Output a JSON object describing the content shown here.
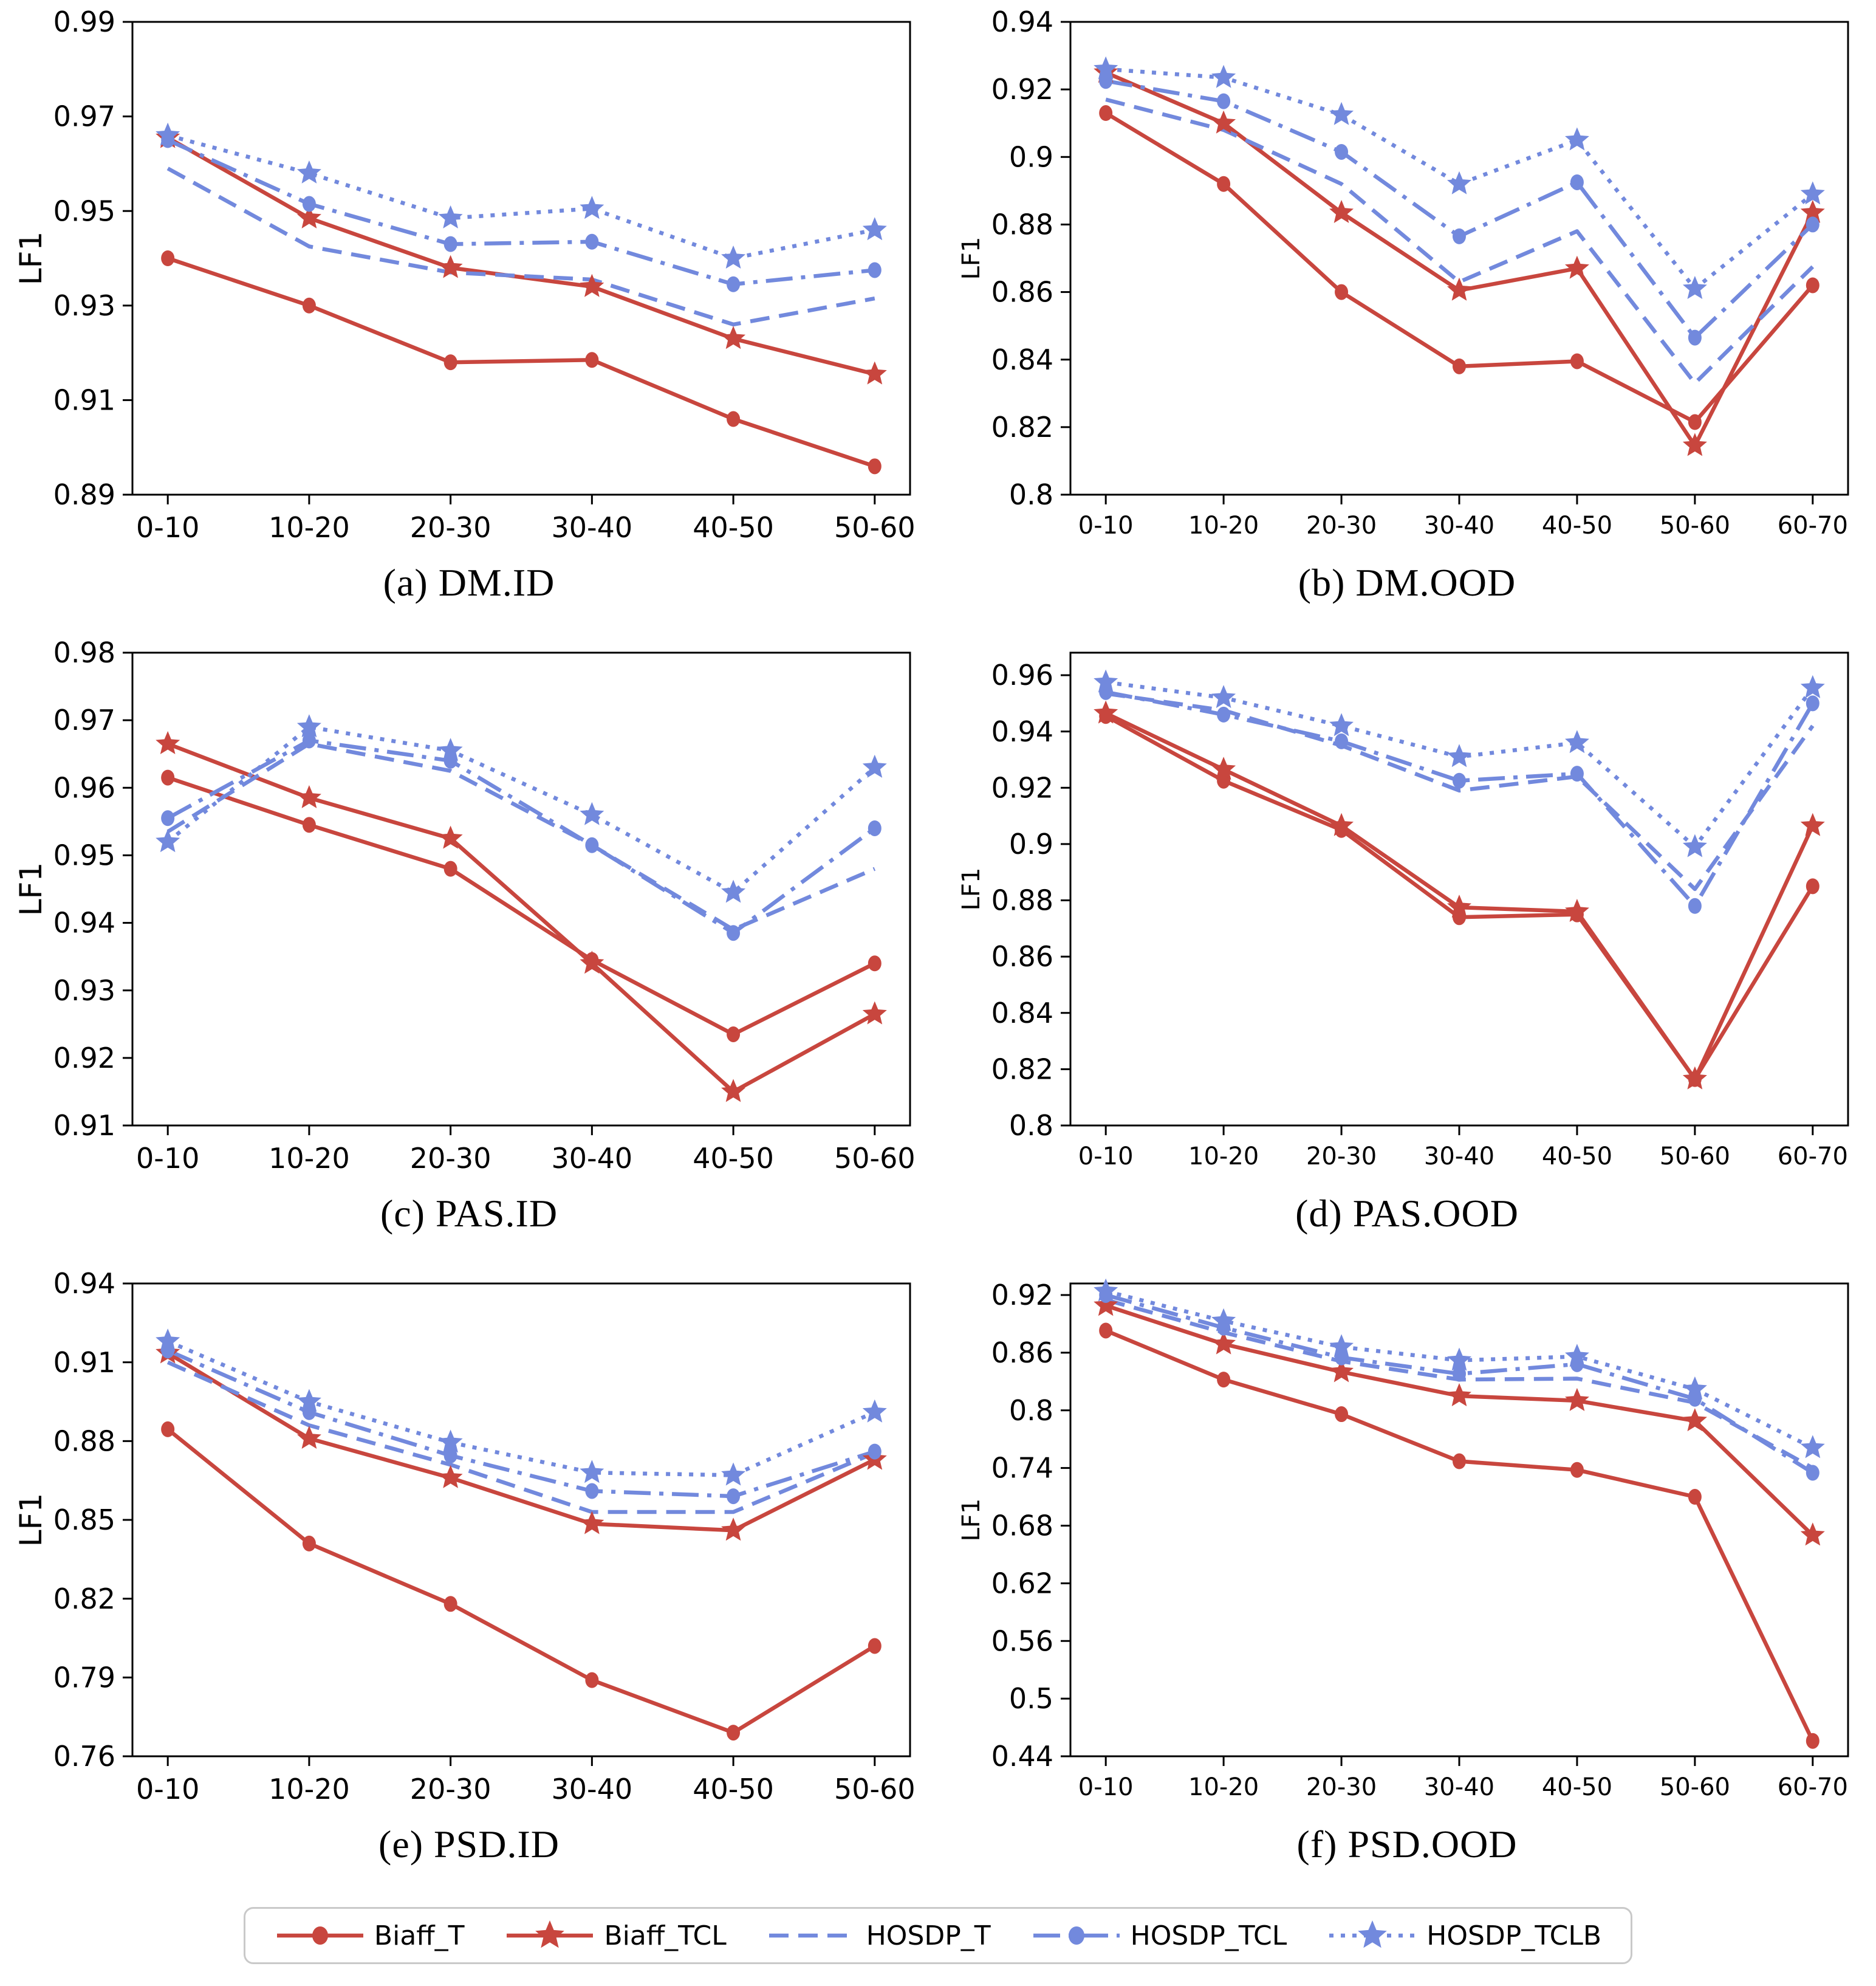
{
  "figure": {
    "background": "#ffffff",
    "ylabel": "LF1"
  },
  "colors": {
    "red": "#c8463e",
    "blue": "#7289dd",
    "axis": "#000000",
    "legend_border": "#c9c9c9"
  },
  "series_styles": {
    "Biaff_T": {
      "color": "#c8463e",
      "marker": "circle",
      "line": "solid"
    },
    "Biaff_TCL": {
      "color": "#c8463e",
      "marker": "star",
      "line": "solid"
    },
    "HOSDP_T": {
      "color": "#7289dd",
      "marker": "none",
      "line": "dashed"
    },
    "HOSDP_TCL": {
      "color": "#7289dd",
      "marker": "circle",
      "line": "dashdot"
    },
    "HOSDP_TCLB": {
      "color": "#7289dd",
      "marker": "star",
      "line": "dotted"
    }
  },
  "legend": {
    "position": "bottom",
    "items": [
      {
        "label": "Biaff_T",
        "style": "Biaff_T"
      },
      {
        "label": "Biaff_TCL",
        "style": "Biaff_TCL"
      },
      {
        "label": "HOSDP_T",
        "style": "HOSDP_T"
      },
      {
        "label": "HOSDP_TCL",
        "style": "HOSDP_TCL"
      },
      {
        "label": "HOSDP_TCLB",
        "style": "HOSDP_TCLB"
      }
    ]
  },
  "chart_data": [
    {
      "type": "line",
      "title": "(a) DM.ID",
      "ylabel": "LF1",
      "grid": false,
      "categories": [
        "0-10",
        "10-20",
        "20-30",
        "30-40",
        "40-50",
        "50-60"
      ],
      "ylim": [
        0.89,
        0.99
      ],
      "yticks": [
        0.89,
        0.91,
        0.93,
        0.95,
        0.97,
        0.99
      ],
      "ytick_labels": [
        "0.89",
        "0.91",
        "0.93",
        "0.95",
        "0.97",
        "0.99"
      ],
      "series": [
        {
          "name": "Biaff_T",
          "values": [
            0.94,
            0.93,
            0.918,
            0.9185,
            0.906,
            0.896
          ]
        },
        {
          "name": "Biaff_TCL",
          "values": [
            0.9655,
            0.9485,
            0.938,
            0.934,
            0.923,
            0.9155
          ]
        },
        {
          "name": "HOSDP_T",
          "values": [
            0.959,
            0.9425,
            0.937,
            0.9355,
            0.926,
            0.9315
          ]
        },
        {
          "name": "HOSDP_TCL",
          "values": [
            0.965,
            0.9515,
            0.943,
            0.9435,
            0.9345,
            0.9375
          ]
        },
        {
          "name": "HOSDP_TCLB",
          "values": [
            0.966,
            0.958,
            0.9485,
            0.9505,
            0.94,
            0.946
          ]
        }
      ]
    },
    {
      "type": "line",
      "title": "(b) DM.OOD",
      "ylabel": "LF1",
      "grid": false,
      "categories": [
        "0-10",
        "10-20",
        "20-30",
        "30-40",
        "40-50",
        "50-60",
        "60-70"
      ],
      "ylim": [
        0.8,
        0.94
      ],
      "yticks": [
        0.8,
        0.82,
        0.84,
        0.86,
        0.88,
        0.9,
        0.92,
        0.94
      ],
      "ytick_labels": [
        "0.8",
        "0.82",
        "0.84",
        "0.86",
        "0.88",
        "0.9",
        "0.92",
        "0.94"
      ],
      "series": [
        {
          "name": "Biaff_T",
          "values": [
            0.913,
            0.892,
            0.86,
            0.838,
            0.8395,
            0.8215,
            0.862
          ]
        },
        {
          "name": "Biaff_TCL",
          "values": [
            0.925,
            0.91,
            0.8835,
            0.8605,
            0.867,
            0.8145,
            0.8835
          ]
        },
        {
          "name": "HOSDP_T",
          "values": [
            0.917,
            0.908,
            0.892,
            0.863,
            0.878,
            0.833,
            0.8675
          ]
        },
        {
          "name": "HOSDP_TCL",
          "values": [
            0.9225,
            0.9165,
            0.9015,
            0.8765,
            0.8925,
            0.8465,
            0.88
          ]
        },
        {
          "name": "HOSDP_TCLB",
          "values": [
            0.926,
            0.9235,
            0.9125,
            0.892,
            0.905,
            0.861,
            0.889
          ]
        }
      ]
    },
    {
      "type": "line",
      "title": "(c) PAS.ID",
      "ylabel": "LF1",
      "grid": false,
      "categories": [
        "0-10",
        "10-20",
        "20-30",
        "30-40",
        "40-50",
        "50-60"
      ],
      "ylim": [
        0.91,
        0.98
      ],
      "yticks": [
        0.91,
        0.92,
        0.93,
        0.94,
        0.95,
        0.96,
        0.97,
        0.98
      ],
      "ytick_labels": [
        "0.91",
        "0.92",
        "0.93",
        "0.94",
        "0.95",
        "0.96",
        "0.97",
        "0.98"
      ],
      "series": [
        {
          "name": "Biaff_T",
          "values": [
            0.9615,
            0.9545,
            0.948,
            0.9345,
            0.9235,
            0.934
          ]
        },
        {
          "name": "Biaff_TCL",
          "values": [
            0.9665,
            0.9585,
            0.9525,
            0.934,
            0.915,
            0.9265
          ]
        },
        {
          "name": "HOSDP_T",
          "values": [
            0.9535,
            0.9665,
            0.9625,
            0.9515,
            0.939,
            0.948
          ]
        },
        {
          "name": "HOSDP_TCL",
          "values": [
            0.9555,
            0.967,
            0.964,
            0.9515,
            0.9385,
            0.954
          ]
        },
        {
          "name": "HOSDP_TCLB",
          "values": [
            0.952,
            0.969,
            0.9655,
            0.956,
            0.9445,
            0.963
          ]
        }
      ]
    },
    {
      "type": "line",
      "title": "(d) PAS.OOD",
      "ylabel": "LF1",
      "grid": false,
      "categories": [
        "0-10",
        "10-20",
        "20-30",
        "30-40",
        "40-50",
        "50-60",
        "60-70"
      ],
      "ylim": [
        0.8,
        0.968
      ],
      "yticks": [
        0.8,
        0.82,
        0.84,
        0.86,
        0.88,
        0.9,
        0.92,
        0.94,
        0.96
      ],
      "ytick_labels": [
        "0.8",
        "0.82",
        "0.84",
        "0.86",
        "0.88",
        "0.9",
        "0.92",
        "0.94",
        "0.96"
      ],
      "series": [
        {
          "name": "Biaff_T",
          "values": [
            0.9455,
            0.9225,
            0.905,
            0.874,
            0.875,
            0.8165,
            0.885
          ]
        },
        {
          "name": "Biaff_TCL",
          "values": [
            0.9465,
            0.9265,
            0.9065,
            0.8775,
            0.876,
            0.8165,
            0.9065
          ]
        },
        {
          "name": "HOSDP_T",
          "values": [
            0.9535,
            0.9475,
            0.935,
            0.919,
            0.924,
            0.884,
            0.942
          ]
        },
        {
          "name": "HOSDP_TCL",
          "values": [
            0.954,
            0.946,
            0.9365,
            0.9225,
            0.925,
            0.878,
            0.95
          ]
        },
        {
          "name": "HOSDP_TCLB",
          "values": [
            0.9575,
            0.952,
            0.942,
            0.931,
            0.936,
            0.899,
            0.9555
          ]
        }
      ]
    },
    {
      "type": "line",
      "title": "(e) PSD.ID",
      "ylabel": "LF1",
      "grid": false,
      "categories": [
        "0-10",
        "10-20",
        "20-30",
        "30-40",
        "40-50",
        "50-60"
      ],
      "ylim": [
        0.76,
        0.94
      ],
      "yticks": [
        0.76,
        0.79,
        0.82,
        0.85,
        0.88,
        0.91,
        0.94
      ],
      "ytick_labels": [
        "0.76",
        "0.79",
        "0.82",
        "0.85",
        "0.88",
        "0.91",
        "0.94"
      ],
      "series": [
        {
          "name": "Biaff_T",
          "values": [
            0.8845,
            0.841,
            0.818,
            0.789,
            0.769,
            0.802
          ]
        },
        {
          "name": "Biaff_TCL",
          "values": [
            0.9135,
            0.881,
            0.866,
            0.8485,
            0.846,
            0.873
          ]
        },
        {
          "name": "HOSDP_T",
          "values": [
            0.91,
            0.886,
            0.871,
            0.853,
            0.853,
            0.8755
          ]
        },
        {
          "name": "HOSDP_TCL",
          "values": [
            0.9145,
            0.891,
            0.8745,
            0.861,
            0.859,
            0.876
          ]
        },
        {
          "name": "HOSDP_TCLB",
          "values": [
            0.918,
            0.895,
            0.8795,
            0.868,
            0.867,
            0.891
          ]
        }
      ]
    },
    {
      "type": "line",
      "title": "(f) PSD.OOD",
      "ylabel": "LF1",
      "grid": false,
      "categories": [
        "0-10",
        "10-20",
        "20-30",
        "30-40",
        "40-50",
        "50-60",
        "60-70"
      ],
      "ylim": [
        0.44,
        0.932
      ],
      "yticks": [
        0.44,
        0.5,
        0.56,
        0.62,
        0.68,
        0.74,
        0.8,
        0.86,
        0.92
      ],
      "ytick_labels": [
        "0.44",
        "0.5",
        "0.56",
        "0.62",
        "0.68",
        "0.74",
        "0.8",
        "0.86",
        "0.92"
      ],
      "series": [
        {
          "name": "Biaff_T",
          "values": [
            0.883,
            0.832,
            0.796,
            0.747,
            0.738,
            0.71,
            0.456
          ]
        },
        {
          "name": "Biaff_TCL",
          "values": [
            0.909,
            0.869,
            0.84,
            0.815,
            0.81,
            0.789,
            0.67
          ]
        },
        {
          "name": "HOSDP_T",
          "values": [
            0.915,
            0.881,
            0.851,
            0.832,
            0.833,
            0.808,
            0.74
          ]
        },
        {
          "name": "HOSDP_TCL",
          "values": [
            0.92,
            0.886,
            0.855,
            0.838,
            0.848,
            0.812,
            0.735
          ]
        },
        {
          "name": "HOSDP_TCLB",
          "values": [
            0.924,
            0.893,
            0.866,
            0.852,
            0.856,
            0.822,
            0.761
          ]
        }
      ]
    }
  ]
}
